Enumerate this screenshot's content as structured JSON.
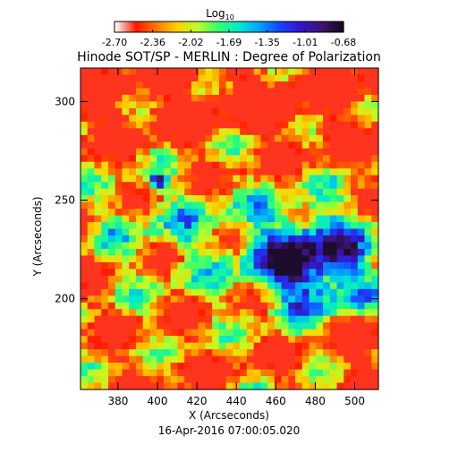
{
  "chart_data": {
    "type": "heatmap",
    "title": "Hinode SOT/SP - MERLIN : Degree of Polarization",
    "colorbar": {
      "label_base": "Log",
      "label_sub": "10",
      "ticks": [
        "-2.70",
        "-2.36",
        "-2.02",
        "-1.69",
        "-1.35",
        "-1.01",
        "-0.68"
      ],
      "range": [
        -2.7,
        -0.68
      ],
      "colors": [
        "#ffffff",
        "#ff1800",
        "#ff7a00",
        "#ffd200",
        "#b8ff2a",
        "#32ff6e",
        "#00e8d0",
        "#00a0ff",
        "#1840ff",
        "#3414c8",
        "#3c1470",
        "#140a1a"
      ]
    },
    "xlabel": "X (Arcseconds)",
    "ylabel": "Y (Arcseconds)",
    "xlim": [
      361,
      512
    ],
    "ylim": [
      154,
      317
    ],
    "xticks": [
      380,
      400,
      420,
      440,
      460,
      480,
      500
    ],
    "yticks": [
      200,
      250,
      300
    ],
    "features": [
      {
        "kind": "sunspot_umbra",
        "x": 478,
        "y": 219,
        "log_value": -0.95
      },
      {
        "kind": "pore",
        "x": 401,
        "y": 259,
        "log_value": -1.1
      }
    ],
    "timestamp": "16-Apr-2016 07:00:05.020"
  }
}
